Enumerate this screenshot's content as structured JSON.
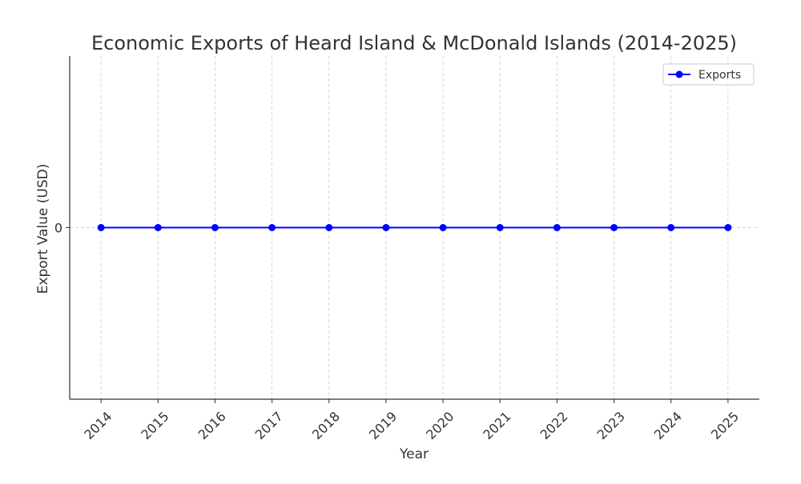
{
  "chart_data": {
    "type": "line",
    "title": "Economic Exports of Heard Island & McDonald Islands (2014-2025)",
    "x_label": "Year",
    "y_label": "Export Value (USD)",
    "x": [
      2014,
      2015,
      2016,
      2017,
      2018,
      2019,
      2020,
      2021,
      2022,
      2023,
      2024,
      2025
    ],
    "series": [
      {
        "name": "Exports",
        "color": "#0000ff",
        "values": [
          0,
          0,
          0,
          0,
          0,
          0,
          0,
          0,
          0,
          0,
          0,
          0
        ]
      }
    ],
    "xlim": [
      2013.45,
      2025.55
    ],
    "xticks": [
      2014,
      2015,
      2016,
      2017,
      2018,
      2019,
      2020,
      2021,
      2022,
      2023,
      2024,
      2025
    ],
    "ylim": [
      -0.055,
      0.055
    ],
    "yticks": [
      0
    ],
    "grid": true,
    "legend": "upper right"
  }
}
